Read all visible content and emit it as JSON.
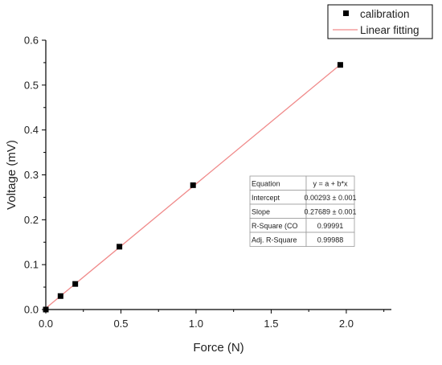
{
  "chart_data": {
    "type": "scatter",
    "title": "",
    "xlabel": "Force (N)",
    "ylabel": "Voltage (mV)",
    "xlim": [
      0,
      2.3
    ],
    "ylim": [
      0,
      0.6
    ],
    "xticks": [
      "0.0",
      "0.5",
      "1.0",
      "1.5",
      "2.0"
    ],
    "yticks": [
      "0.0",
      "0.1",
      "0.2",
      "0.3",
      "0.4",
      "0.5",
      "0.6"
    ],
    "grid": false,
    "legend_position": "top-right",
    "series": [
      {
        "name": "calibration",
        "marker": "square",
        "color": "#000000",
        "points": [
          {
            "x": 0.0,
            "y": 0.0
          },
          {
            "x": 0.098,
            "y": 0.03
          },
          {
            "x": 0.196,
            "y": 0.057
          },
          {
            "x": 0.49,
            "y": 0.14
          },
          {
            "x": 0.98,
            "y": 0.277
          },
          {
            "x": 1.96,
            "y": 0.545
          }
        ]
      },
      {
        "name": "Linear fitting",
        "type": "line",
        "color": "#f08a8a",
        "intercept": 0.00293,
        "slope": 0.27689,
        "x_range": [
          0.0,
          1.96
        ]
      }
    ],
    "fit_table": {
      "header": [
        "Equation",
        "y = a + b*x"
      ],
      "rows": [
        [
          "Intercept",
          "0.00293 ± 0.001"
        ],
        [
          "Slope",
          "0.27689 ± 0.001"
        ],
        [
          "R-Square (CO",
          "0.99991"
        ],
        [
          "Adj. R-Square",
          "0.99988"
        ]
      ]
    }
  }
}
